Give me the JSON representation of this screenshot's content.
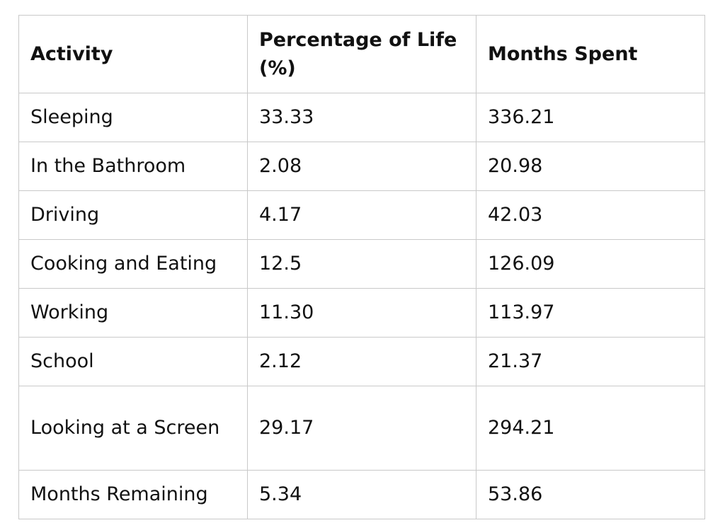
{
  "table": {
    "headers": [
      "Activity",
      "Percentage of Life (%)",
      "Months Spent"
    ],
    "rows": [
      {
        "activity": "Sleeping",
        "percentage": "33.33",
        "months": "336.21"
      },
      {
        "activity": "In the Bathroom",
        "percentage": "2.08",
        "months": "20.98"
      },
      {
        "activity": "Driving",
        "percentage": "4.17",
        "months": "42.03"
      },
      {
        "activity": "Cooking and Eating",
        "percentage": "12.5",
        "months": "126.09"
      },
      {
        "activity": "Working",
        "percentage": "11.30",
        "months": "113.97"
      },
      {
        "activity": "School",
        "percentage": "2.12",
        "months": "21.37"
      },
      {
        "activity": "Looking at a Screen",
        "percentage": "29.17",
        "months": "294.21"
      },
      {
        "activity": "Months Remaining",
        "percentage": "5.34",
        "months": "53.86"
      }
    ]
  }
}
